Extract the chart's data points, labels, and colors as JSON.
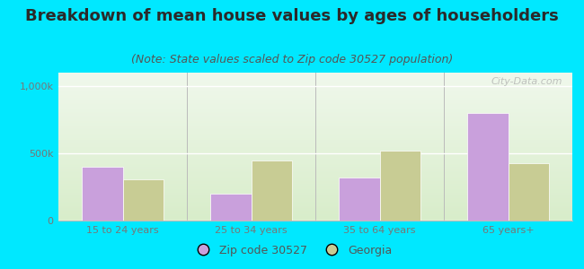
{
  "title": "Breakdown of mean house values by ages of householders",
  "subtitle": "(Note: State values scaled to Zip code 30527 population)",
  "categories": [
    "15 to 24 years",
    "25 to 34 years",
    "35 to 64 years",
    "65 years+"
  ],
  "zip_values": [
    400000,
    200000,
    320000,
    800000
  ],
  "georgia_values": [
    310000,
    450000,
    520000,
    430000
  ],
  "zip_color": "#c9a0dc",
  "georgia_color": "#c8cc94",
  "ylim": [
    0,
    1100000
  ],
  "ytick_vals": [
    0,
    500000,
    1000000
  ],
  "ytick_labels": [
    "0",
    "500k",
    "1,000k"
  ],
  "background_color": "#00e8ff",
  "plot_bg_color_top": "#d8edca",
  "plot_bg_color_bottom": "#f0f8ec",
  "title_fontsize": 13,
  "subtitle_fontsize": 9,
  "tick_fontsize": 8,
  "legend_labels": [
    "Zip code 30527",
    "Georgia"
  ],
  "bar_width": 0.32,
  "watermark": "City-Data.com"
}
